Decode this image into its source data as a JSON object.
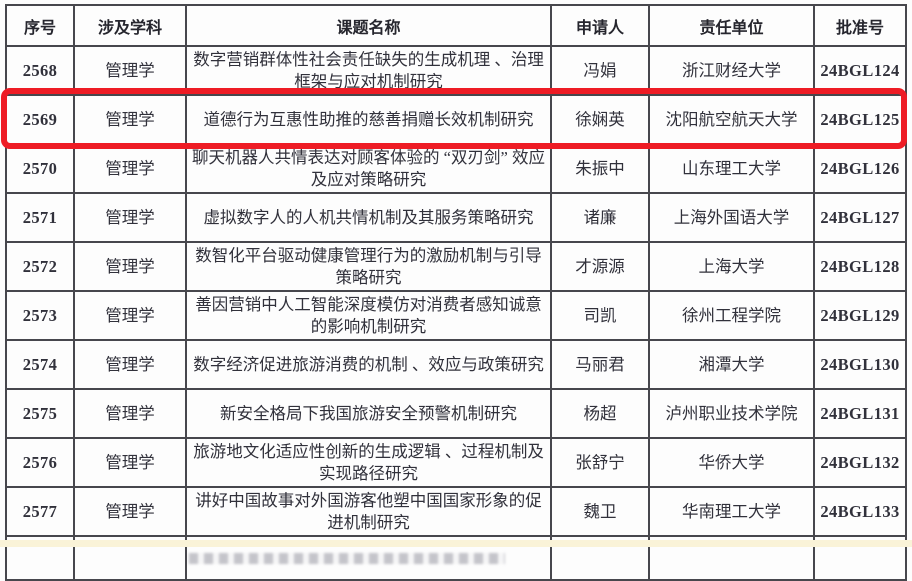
{
  "highlight": {
    "color": "#ee1c25",
    "highlighted_row_serial": "2569"
  },
  "table": {
    "headers": [
      "序号",
      "涉及学科",
      "课题名称",
      "申请人",
      "责任单位",
      "批准号"
    ],
    "rows": [
      {
        "serial": "2568",
        "discipline": "管理学",
        "title": "数字营销群体性社会责任缺失的生成机理 、治理框架与应对机制研究",
        "applicant": "冯娟",
        "institution": "浙江财经大学",
        "approval_no": "24BGL124",
        "highlighted": false
      },
      {
        "serial": "2569",
        "discipline": "管理学",
        "title": "道德行为互惠性助推的慈善捐赠长效机制研究",
        "applicant": "徐娴英",
        "institution": "沈阳航空航天大学",
        "approval_no": "24BGL125",
        "highlighted": true
      },
      {
        "serial": "2570",
        "discipline": "管理学",
        "title": "聊天机器人共情表达对顾客体验的 “双刃剑” 效应及应对策略研究",
        "applicant": "朱振中",
        "institution": "山东理工大学",
        "approval_no": "24BGL126",
        "highlighted": false
      },
      {
        "serial": "2571",
        "discipline": "管理学",
        "title": "虚拟数字人的人机共情机制及其服务策略研究",
        "applicant": "诸廉",
        "institution": "上海外国语大学",
        "approval_no": "24BGL127",
        "highlighted": false
      },
      {
        "serial": "2572",
        "discipline": "管理学",
        "title": "数智化平台驱动健康管理行为的激励机制与引导策略研究",
        "applicant": "才源源",
        "institution": "上海大学",
        "approval_no": "24BGL128",
        "highlighted": false
      },
      {
        "serial": "2573",
        "discipline": "管理学",
        "title": "善因营销中人工智能深度模仿对消费者感知诚意的影响机制研究",
        "applicant": "司凯",
        "institution": "徐州工程学院",
        "approval_no": "24BGL129",
        "highlighted": false
      },
      {
        "serial": "2574",
        "discipline": "管理学",
        "title": "数字经济促进旅游消费的机制 、效应与政策研究",
        "applicant": "马丽君",
        "institution": "湘潭大学",
        "approval_no": "24BGL130",
        "highlighted": false
      },
      {
        "serial": "2575",
        "discipline": "管理学",
        "title": "新安全格局下我国旅游安全预警机制研究",
        "applicant": "杨超",
        "institution": "泸州职业技术学院",
        "approval_no": "24BGL131",
        "highlighted": false
      },
      {
        "serial": "2576",
        "discipline": "管理学",
        "title": "旅游地文化适应性创新的生成逻辑 、过程机制及实现路径研究",
        "applicant": "张舒宁",
        "institution": "华侨大学",
        "approval_no": "24BGL132",
        "highlighted": false
      },
      {
        "serial": "2577",
        "discipline": "管理学",
        "title": "讲好中国故事对外国游客他塑中国国家形象的促进机制研究",
        "applicant": "魏卫",
        "institution": "华南理工大学",
        "approval_no": "24BGL133",
        "highlighted": false
      }
    ]
  }
}
